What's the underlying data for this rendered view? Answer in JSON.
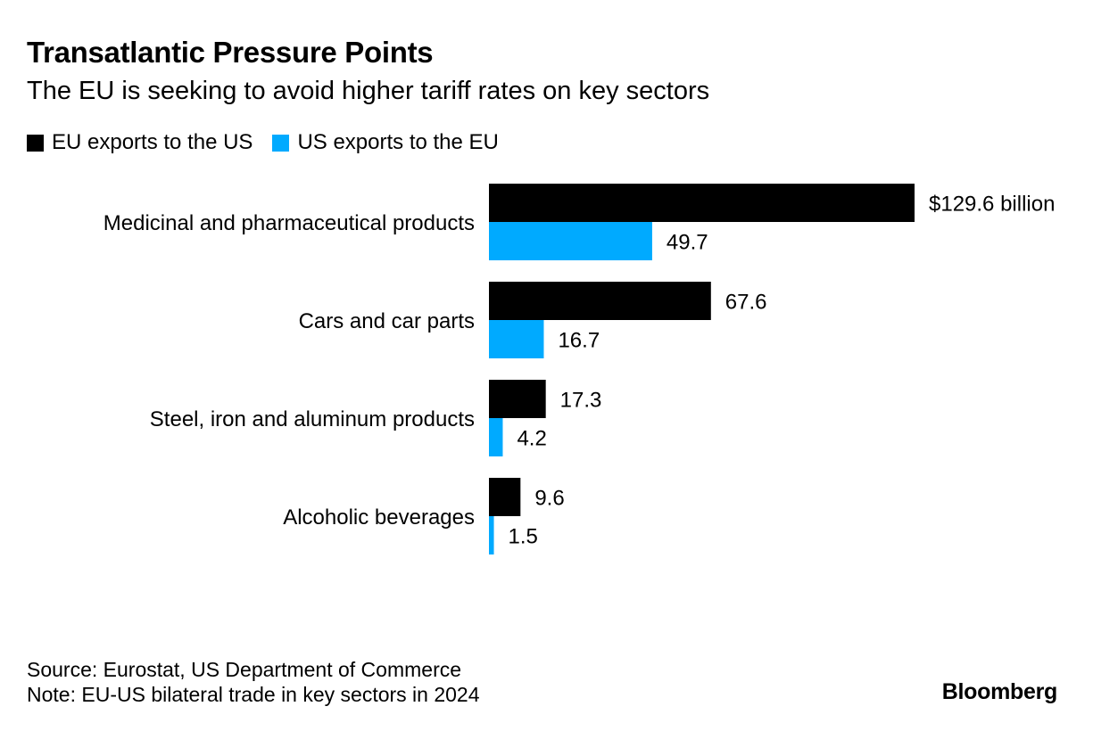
{
  "header": {
    "title": "Transatlantic Pressure Points",
    "subtitle": "The EU is seeking to avoid higher tariff rates on key sectors"
  },
  "legend": [
    {
      "label": "EU exports to the US",
      "color": "#000000"
    },
    {
      "label": "US exports to the EU",
      "color": "#00aaff"
    }
  ],
  "footer": {
    "source": "Source: Eurostat, US Department of Commerce",
    "note": "Note: EU-US bilateral trade in key sectors in 2024",
    "brand": "Bloomberg"
  },
  "chart_data": {
    "type": "bar",
    "orientation": "horizontal",
    "title": "Transatlantic Pressure Points",
    "subtitle": "The EU is seeking to avoid higher tariff rates on key sectors",
    "categories": [
      "Medicinal and pharmaceutical products",
      "Cars and car parts",
      "Steel, iron and aluminum products",
      "Alcoholic beverages"
    ],
    "series": [
      {
        "name": "EU exports to the US",
        "color": "#000000",
        "values": [
          129.6,
          67.6,
          17.3,
          9.6
        ],
        "labels": [
          "$129.6 billion",
          "67.6",
          "17.3",
          "9.6"
        ]
      },
      {
        "name": "US exports to the EU",
        "color": "#00aaff",
        "values": [
          49.7,
          16.7,
          4.2,
          1.5
        ],
        "labels": [
          "49.7",
          "16.7",
          "4.2",
          "1.5"
        ]
      }
    ],
    "xlim": [
      0,
      129.6
    ],
    "grid": false,
    "legend_position": "top-left"
  }
}
